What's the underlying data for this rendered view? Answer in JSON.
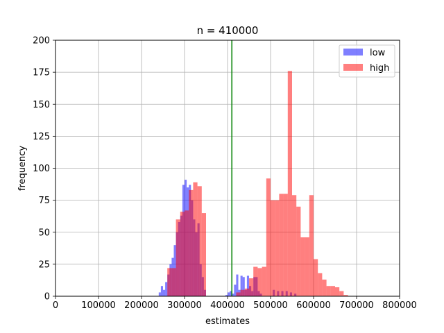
{
  "chart_data": {
    "type": "histogram",
    "title": "n = 410000",
    "xlabel": "estimates",
    "ylabel": "frequency",
    "xlim": [
      0,
      800000
    ],
    "ylim": [
      0,
      200
    ],
    "xticks": [
      0,
      100000,
      200000,
      300000,
      400000,
      500000,
      600000,
      700000,
      800000
    ],
    "yticks": [
      0,
      25,
      50,
      75,
      100,
      125,
      150,
      175,
      200
    ],
    "grid": true,
    "legend_position": "top-right",
    "vline": {
      "x": 410000,
      "color": "#008000"
    },
    "series": [
      {
        "name": "low",
        "color": "#0000ff",
        "alpha": 0.5,
        "bin_width": 5000,
        "bins": [
          [
            240000,
            3
          ],
          [
            245000,
            8
          ],
          [
            250000,
            5
          ],
          [
            255000,
            11
          ],
          [
            260000,
            17
          ],
          [
            265000,
            25
          ],
          [
            270000,
            30
          ],
          [
            275000,
            40
          ],
          [
            280000,
            50
          ],
          [
            285000,
            58
          ],
          [
            290000,
            63
          ],
          [
            295000,
            87
          ],
          [
            300000,
            91
          ],
          [
            305000,
            85
          ],
          [
            310000,
            87
          ],
          [
            315000,
            75
          ],
          [
            320000,
            60
          ],
          [
            325000,
            50
          ],
          [
            330000,
            57
          ],
          [
            335000,
            25
          ],
          [
            340000,
            15
          ],
          [
            345000,
            5
          ],
          [
            395000,
            1
          ],
          [
            400000,
            3
          ],
          [
            405000,
            4
          ],
          [
            410000,
            2
          ],
          [
            415000,
            9
          ],
          [
            420000,
            17
          ],
          [
            425000,
            5
          ],
          [
            430000,
            16
          ],
          [
            435000,
            15
          ],
          [
            440000,
            5
          ],
          [
            445000,
            16
          ],
          [
            450000,
            8
          ],
          [
            455000,
            4
          ],
          [
            460000,
            15
          ],
          [
            465000,
            15
          ],
          [
            470000,
            4
          ],
          [
            475000,
            2
          ],
          [
            505000,
            5
          ],
          [
            515000,
            4
          ],
          [
            525000,
            4
          ],
          [
            535000,
            4
          ],
          [
            545000,
            3
          ],
          [
            555000,
            2
          ]
        ]
      },
      {
        "name": "high",
        "color": "#ff0000",
        "alpha": 0.5,
        "bin_width": 10000,
        "bins": [
          [
            260000,
            22
          ],
          [
            270000,
            22
          ],
          [
            280000,
            60
          ],
          [
            290000,
            66
          ],
          [
            300000,
            67
          ],
          [
            310000,
            83
          ],
          [
            320000,
            89
          ],
          [
            330000,
            86
          ],
          [
            340000,
            65
          ],
          [
            420000,
            3
          ],
          [
            430000,
            5
          ],
          [
            440000,
            6
          ],
          [
            450000,
            14
          ],
          [
            460000,
            23
          ],
          [
            470000,
            22
          ],
          [
            480000,
            23
          ],
          [
            490000,
            92
          ],
          [
            500000,
            75
          ],
          [
            510000,
            75
          ],
          [
            520000,
            80
          ],
          [
            530000,
            80
          ],
          [
            540000,
            176
          ],
          [
            550000,
            79
          ],
          [
            560000,
            70
          ],
          [
            570000,
            46
          ],
          [
            580000,
            46
          ],
          [
            590000,
            79
          ],
          [
            600000,
            29
          ],
          [
            610000,
            18
          ],
          [
            620000,
            13
          ],
          [
            630000,
            8
          ],
          [
            640000,
            8
          ],
          [
            650000,
            7
          ],
          [
            660000,
            4
          ],
          [
            670000,
            1
          ],
          [
            680000,
            0
          ]
        ]
      }
    ]
  }
}
